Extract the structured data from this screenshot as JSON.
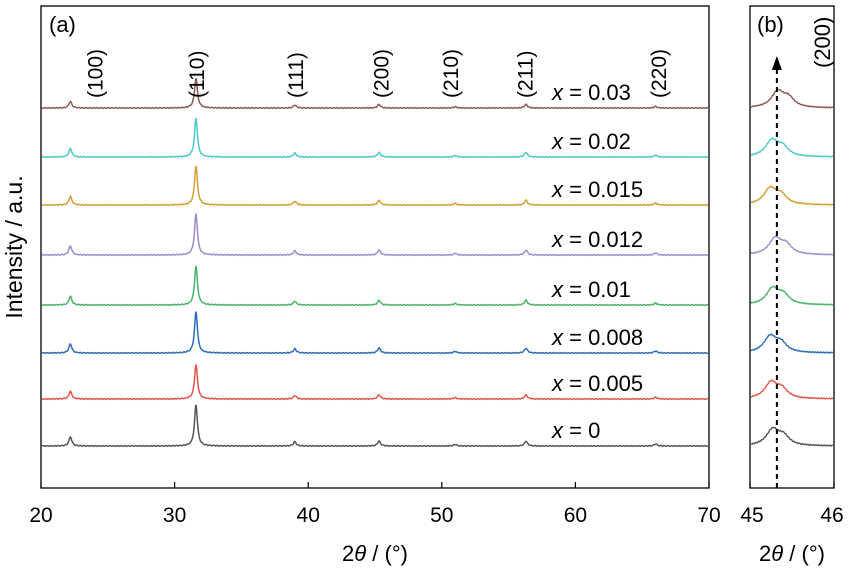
{
  "chart_data": [
    {
      "panel_label": "(a)",
      "type": "line",
      "xlabel_prefix": "2",
      "xlabel_var": "θ",
      "xlabel_unit": " / (°)",
      "ylabel": "Intensity / a.u.",
      "xlim": [
        20,
        70
      ],
      "xticks": [
        20,
        30,
        40,
        50,
        60,
        70
      ],
      "peaks": [
        {
          "hkl": "(100)",
          "position": 22.2,
          "label_x": 24.0
        },
        {
          "hkl": "(110)",
          "position": 31.6,
          "label_x": 31.6
        },
        {
          "hkl": "(111)",
          "position": 39.0,
          "label_x": 39.0
        },
        {
          "hkl": "(200)",
          "position": 45.3,
          "label_x": 45.4
        },
        {
          "hkl": "(210)",
          "position": 51.0,
          "label_x": 50.6
        },
        {
          "hkl": "(211)",
          "position": 56.3,
          "label_x": 56.2
        },
        {
          "hkl": "(220)",
          "position": 66.0,
          "label_x": 66.2
        }
      ],
      "peak_heights": [
        0.22,
        1.0,
        0.1,
        0.12,
        0.04,
        0.12,
        0.05
      ],
      "series": [
        {
          "name": "x = 0",
          "var": "x",
          "value_text": " = 0",
          "color": "#555555",
          "peak_scale": 0.9
        },
        {
          "name": "x = 0.005",
          "var": "x",
          "value_text": " = 0.005",
          "color": "#e2574a",
          "peak_scale": 0.75
        },
        {
          "name": "x = 0.008",
          "var": "x",
          "value_text": " = 0.008",
          "color": "#2f6db5",
          "peak_scale": 0.9
        },
        {
          "name": "x = 0.01",
          "var": "x",
          "value_text": " = 0.01",
          "color": "#4cb36b",
          "peak_scale": 0.85
        },
        {
          "name": "x = 0.012",
          "var": "x",
          "value_text": " = 0.012",
          "color": "#9d8ec9",
          "peak_scale": 0.9
        },
        {
          "name": "x = 0.015",
          "var": "x",
          "value_text": " = 0.015",
          "color": "#d4a035",
          "peak_scale": 0.85
        },
        {
          "name": "x = 0.02",
          "var": "x",
          "value_text": " = 0.02",
          "color": "#4ec9c7",
          "peak_scale": 0.85
        },
        {
          "name": "x = 0.03",
          "var": "x",
          "value_text": " = 0.03",
          "color": "#8b5a57",
          "peak_scale": 0.65
        }
      ]
    },
    {
      "panel_label": "(b)",
      "type": "line",
      "xlabel_prefix": "2",
      "xlabel_var": "θ",
      "xlabel_unit": " / (°)",
      "xlim": [
        45,
        46
      ],
      "xticks": [
        45,
        46
      ],
      "annotation": "(200)",
      "reference_line_x": 45.32,
      "arrow_direction": "up",
      "series": [
        {
          "name": "x = 0",
          "peak_center": 45.27,
          "color": "#555555"
        },
        {
          "name": "x = 0.005",
          "peak_center": 45.25,
          "color": "#e2574a"
        },
        {
          "name": "x = 0.008",
          "peak_center": 45.24,
          "color": "#2f6db5"
        },
        {
          "name": "x = 0.01",
          "peak_center": 45.27,
          "color": "#4cb36b"
        },
        {
          "name": "x = 0.012",
          "peak_center": 45.3,
          "color": "#9d8ec9"
        },
        {
          "name": "x = 0.015",
          "peak_center": 45.24,
          "color": "#d4a035"
        },
        {
          "name": "x = 0.02",
          "peak_center": 45.26,
          "color": "#4ec9c7"
        },
        {
          "name": "x = 0.03",
          "peak_center": 45.33,
          "color": "#8b5a57"
        }
      ]
    }
  ]
}
